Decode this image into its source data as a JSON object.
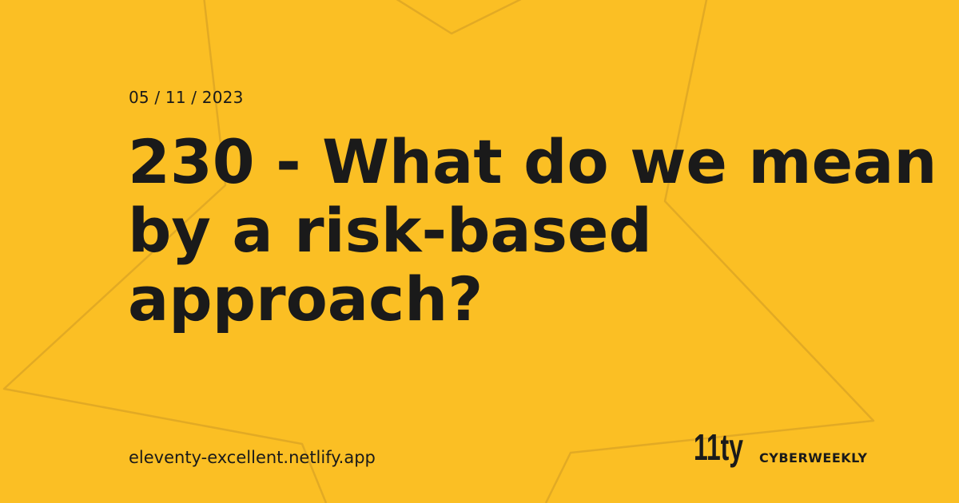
{
  "card": {
    "date": "05 / 11 / 2023",
    "title": "230 - What do we mean by a risk-based approach?",
    "site_url": "eleventy-excellent.netlify.app",
    "brand_name": "CYBERWEEKLY",
    "logo_text": "11ty"
  },
  "colors": {
    "background": "#fbbf24",
    "text": "#1a1a1a",
    "star_outline": "#e2aa24"
  },
  "icons": {
    "background": "star-outline-icon",
    "logo": "eleventy-logo-icon"
  }
}
